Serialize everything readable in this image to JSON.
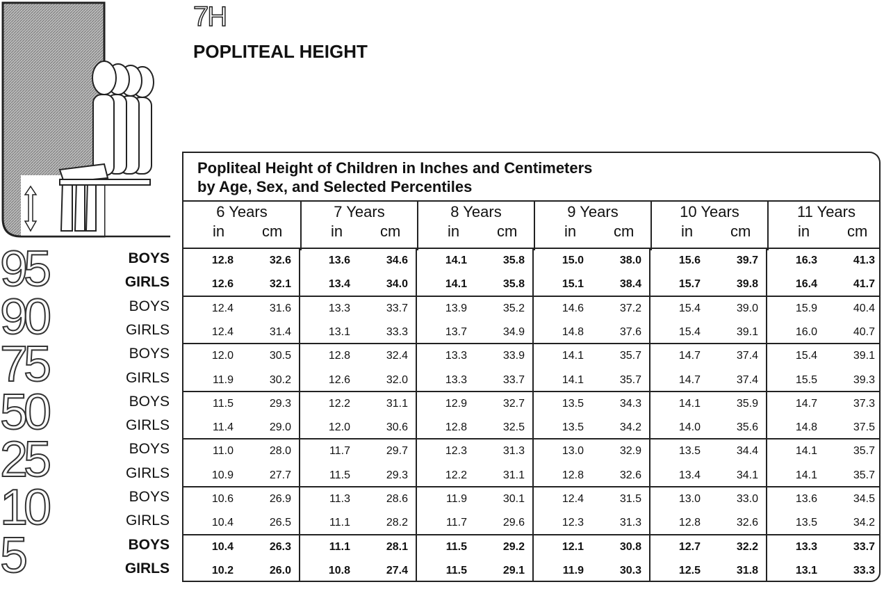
{
  "page": {
    "code": "7H",
    "title": "POPLITEAL HEIGHT"
  },
  "table": {
    "caption_line1": "Popliteal Height of Children in Inches and Centimeters",
    "caption_line2": "by Age, Sex, and Selected Percentiles",
    "ages": [
      "6 Years",
      "7 Years",
      "8 Years",
      "9 Years",
      "10 Years",
      "11 Years"
    ],
    "unit_in": "in",
    "unit_cm": "cm",
    "percentiles": [
      {
        "label": "95",
        "bold": true,
        "rows": [
          {
            "sex": "BOYS",
            "values": [
              "12.8",
              "32.6",
              "13.6",
              "34.6",
              "14.1",
              "35.8",
              "15.0",
              "38.0",
              "15.6",
              "39.7",
              "16.3",
              "41.3"
            ]
          },
          {
            "sex": "GIRLS",
            "values": [
              "12.6",
              "32.1",
              "13.4",
              "34.0",
              "14.1",
              "35.8",
              "15.1",
              "38.4",
              "15.7",
              "39.8",
              "16.4",
              "41.7"
            ]
          }
        ]
      },
      {
        "label": "90",
        "bold": false,
        "rows": [
          {
            "sex": "BOYS",
            "values": [
              "12.4",
              "31.6",
              "13.3",
              "33.7",
              "13.9",
              "35.2",
              "14.6",
              "37.2",
              "15.4",
              "39.0",
              "15.9",
              "40.4"
            ]
          },
          {
            "sex": "GIRLS",
            "values": [
              "12.4",
              "31.4",
              "13.1",
              "33.3",
              "13.7",
              "34.9",
              "14.8",
              "37.6",
              "15.4",
              "39.1",
              "16.0",
              "40.7"
            ]
          }
        ]
      },
      {
        "label": "75",
        "bold": false,
        "rows": [
          {
            "sex": "BOYS",
            "values": [
              "12.0",
              "30.5",
              "12.8",
              "32.4",
              "13.3",
              "33.9",
              "14.1",
              "35.7",
              "14.7",
              "37.4",
              "15.4",
              "39.1"
            ]
          },
          {
            "sex": "GIRLS",
            "values": [
              "11.9",
              "30.2",
              "12.6",
              "32.0",
              "13.3",
              "33.7",
              "14.1",
              "35.7",
              "14.7",
              "37.4",
              "15.5",
              "39.3"
            ]
          }
        ]
      },
      {
        "label": "50",
        "bold": false,
        "rows": [
          {
            "sex": "BOYS",
            "values": [
              "11.5",
              "29.3",
              "12.2",
              "31.1",
              "12.9",
              "32.7",
              "13.5",
              "34.3",
              "14.1",
              "35.9",
              "14.7",
              "37.3"
            ]
          },
          {
            "sex": "GIRLS",
            "values": [
              "11.4",
              "29.0",
              "12.0",
              "30.6",
              "12.8",
              "32.5",
              "13.5",
              "34.2",
              "14.0",
              "35.6",
              "14.8",
              "37.5"
            ]
          }
        ]
      },
      {
        "label": "25",
        "bold": false,
        "rows": [
          {
            "sex": "BOYS",
            "values": [
              "11.0",
              "28.0",
              "11.7",
              "29.7",
              "12.3",
              "31.3",
              "13.0",
              "32.9",
              "13.5",
              "34.4",
              "14.1",
              "35.7"
            ]
          },
          {
            "sex": "GIRLS",
            "values": [
              "10.9",
              "27.7",
              "11.5",
              "29.3",
              "12.2",
              "31.1",
              "12.8",
              "32.6",
              "13.4",
              "34.1",
              "14.1",
              "35.7"
            ]
          }
        ]
      },
      {
        "label": "10",
        "bold": false,
        "rows": [
          {
            "sex": "BOYS",
            "values": [
              "10.6",
              "26.9",
              "11.3",
              "28.6",
              "11.9",
              "30.1",
              "12.4",
              "31.5",
              "13.0",
              "33.0",
              "13.6",
              "34.5"
            ]
          },
          {
            "sex": "GIRLS",
            "values": [
              "10.4",
              "26.5",
              "11.1",
              "28.2",
              "11.7",
              "29.6",
              "12.3",
              "31.3",
              "12.8",
              "32.6",
              "13.5",
              "34.2"
            ]
          }
        ]
      },
      {
        "label": "5",
        "bold": true,
        "rows": [
          {
            "sex": "BOYS",
            "values": [
              "10.4",
              "26.3",
              "11.1",
              "28.1",
              "11.5",
              "29.2",
              "12.1",
              "30.8",
              "12.7",
              "32.2",
              "13.3",
              "33.7"
            ]
          },
          {
            "sex": "GIRLS",
            "values": [
              "10.2",
              "26.0",
              "10.8",
              "27.4",
              "11.5",
              "29.1",
              "11.9",
              "30.3",
              "12.5",
              "31.8",
              "13.1",
              "33.3"
            ]
          }
        ]
      }
    ]
  }
}
